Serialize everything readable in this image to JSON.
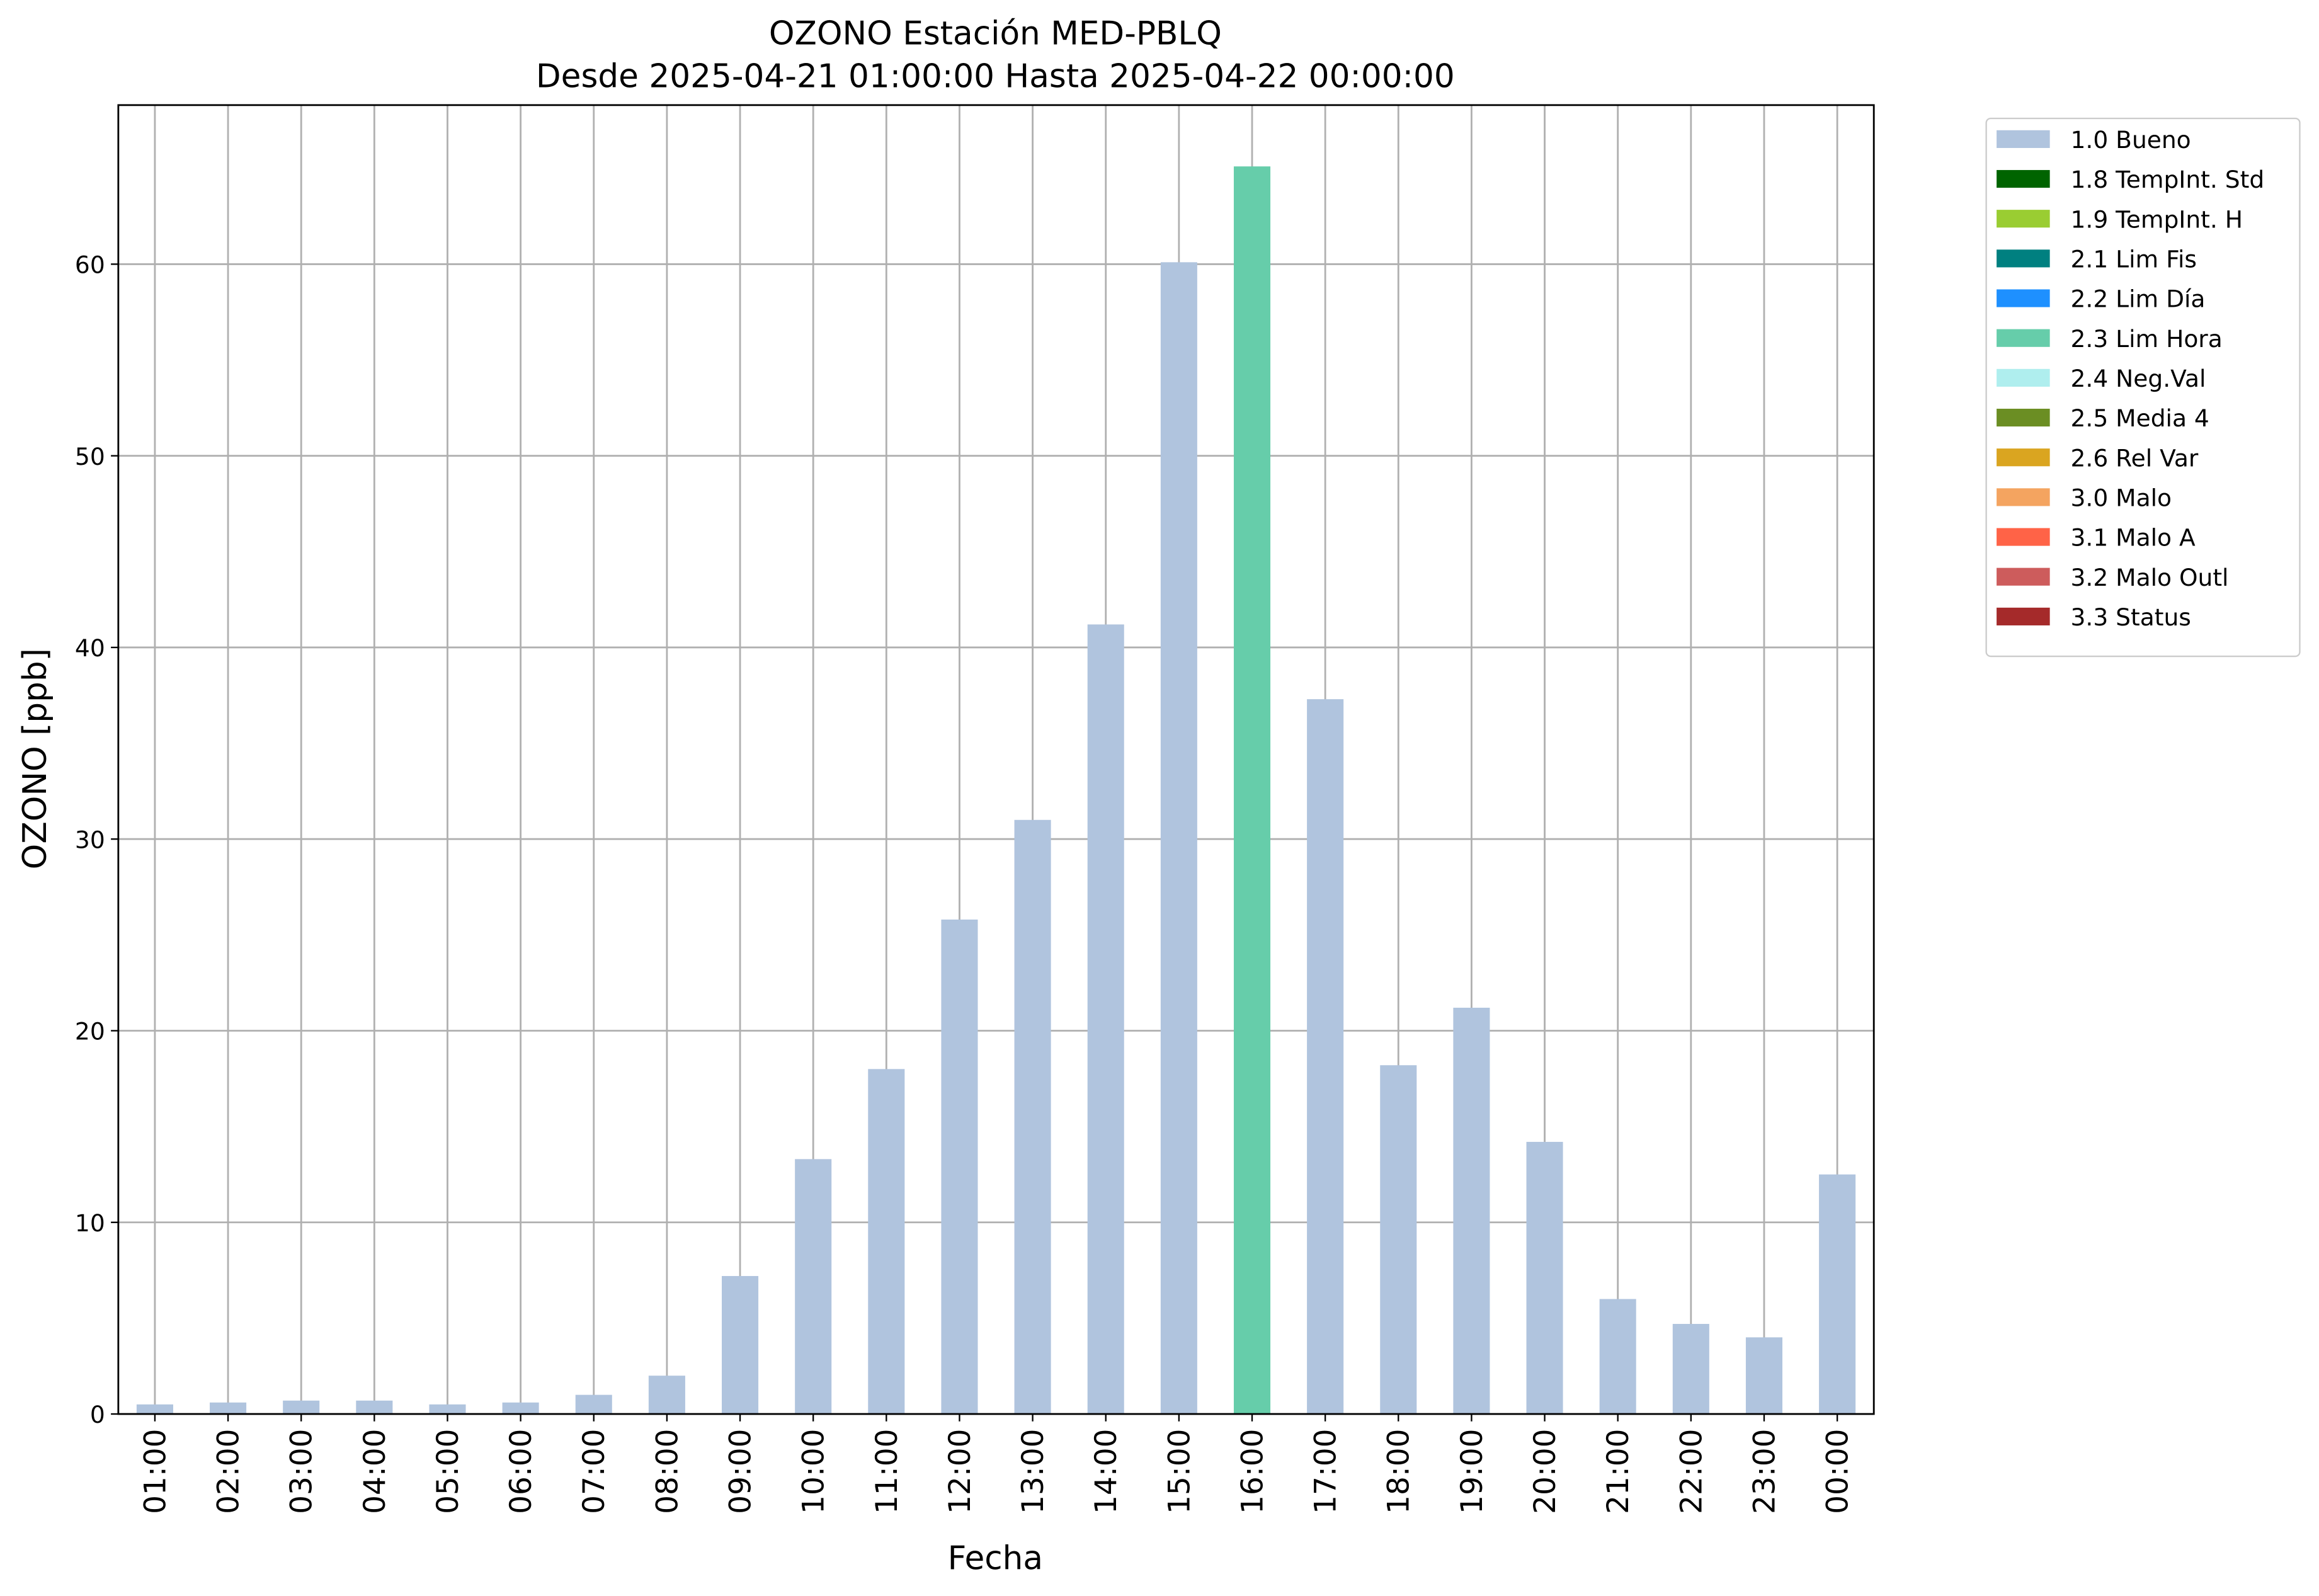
{
  "chart_data": {
    "type": "bar",
    "stacked": true,
    "title": "OZONO Estación MED-PBLQ",
    "subtitle": "Desde 2025-04-21 01:00:00 Hasta 2025-04-22 00:00:00",
    "xlabel": "Fecha",
    "ylabel": "OZONO [ppb]",
    "categories": [
      "01:00",
      "02:00",
      "03:00",
      "04:00",
      "05:00",
      "06:00",
      "07:00",
      "08:00",
      "09:00",
      "10:00",
      "11:00",
      "12:00",
      "13:00",
      "14:00",
      "15:00",
      "16:00",
      "17:00",
      "18:00",
      "19:00",
      "20:00",
      "21:00",
      "22:00",
      "23:00",
      "00:00"
    ],
    "series": [
      {
        "name": "1.0 Bueno",
        "color": "#b0c4de",
        "values": [
          0.5,
          0.6,
          0.7,
          0.7,
          0.5,
          0.6,
          1.0,
          2.0,
          7.2,
          13.3,
          18.0,
          25.8,
          31.0,
          41.2,
          60.1,
          null,
          37.3,
          18.2,
          21.2,
          14.2,
          6.0,
          4.7,
          4.0,
          12.5
        ]
      },
      {
        "name": "1.8 TempInt. Std",
        "color": "#006400",
        "values": [
          null,
          null,
          null,
          null,
          null,
          null,
          null,
          null,
          null,
          null,
          null,
          null,
          null,
          null,
          null,
          null,
          null,
          null,
          null,
          null,
          null,
          null,
          null,
          null
        ]
      },
      {
        "name": "1.9 TempInt. H",
        "color": "#9acd32",
        "values": [
          null,
          null,
          null,
          null,
          null,
          null,
          null,
          null,
          null,
          null,
          null,
          null,
          null,
          null,
          null,
          null,
          null,
          null,
          null,
          null,
          null,
          null,
          null,
          null
        ]
      },
      {
        "name": "2.1 Lim Fis",
        "color": "#008080",
        "values": [
          null,
          null,
          null,
          null,
          null,
          null,
          null,
          null,
          null,
          null,
          null,
          null,
          null,
          null,
          null,
          null,
          null,
          null,
          null,
          null,
          null,
          null,
          null,
          null
        ]
      },
      {
        "name": "2.2 Lim Día",
        "color": "#1e90ff",
        "values": [
          null,
          null,
          null,
          null,
          null,
          null,
          null,
          null,
          null,
          null,
          null,
          null,
          null,
          null,
          null,
          null,
          null,
          null,
          null,
          null,
          null,
          null,
          null,
          null
        ]
      },
      {
        "name": "2.3 Lim Hora",
        "color": "#66cdaa",
        "values": [
          null,
          null,
          null,
          null,
          null,
          null,
          null,
          null,
          null,
          null,
          null,
          null,
          null,
          null,
          null,
          65.1,
          null,
          null,
          null,
          null,
          null,
          null,
          null,
          null
        ]
      },
      {
        "name": "2.4 Neg.Val",
        "color": "#afeeee",
        "values": [
          null,
          null,
          null,
          null,
          null,
          null,
          null,
          null,
          null,
          null,
          null,
          null,
          null,
          null,
          null,
          null,
          null,
          null,
          null,
          null,
          null,
          null,
          null,
          null
        ]
      },
      {
        "name": "2.5 Media 4",
        "color": "#6b8e23",
        "values": [
          null,
          null,
          null,
          null,
          null,
          null,
          null,
          null,
          null,
          null,
          null,
          null,
          null,
          null,
          null,
          null,
          null,
          null,
          null,
          null,
          null,
          null,
          null,
          null
        ]
      },
      {
        "name": "2.6 Rel Var",
        "color": "#daa520",
        "values": [
          null,
          null,
          null,
          null,
          null,
          null,
          null,
          null,
          null,
          null,
          null,
          null,
          null,
          null,
          null,
          null,
          null,
          null,
          null,
          null,
          null,
          null,
          null,
          null
        ]
      },
      {
        "name": "3.0 Malo",
        "color": "#f4a460",
        "values": [
          null,
          null,
          null,
          null,
          null,
          null,
          null,
          null,
          null,
          null,
          null,
          null,
          null,
          null,
          null,
          null,
          null,
          null,
          null,
          null,
          null,
          null,
          null,
          null
        ]
      },
      {
        "name": "3.1 Malo A",
        "color": "#ff6347",
        "values": [
          null,
          null,
          null,
          null,
          null,
          null,
          null,
          null,
          null,
          null,
          null,
          null,
          null,
          null,
          null,
          null,
          null,
          null,
          null,
          null,
          null,
          null,
          null,
          null
        ]
      },
      {
        "name": "3.2 Malo Outl",
        "color": "#cd5c5c",
        "values": [
          null,
          null,
          null,
          null,
          null,
          null,
          null,
          null,
          null,
          null,
          null,
          null,
          null,
          null,
          null,
          null,
          null,
          null,
          null,
          null,
          null,
          null,
          null,
          null
        ]
      },
      {
        "name": "3.3 Status",
        "color": "#a52a2a",
        "values": [
          null,
          null,
          null,
          null,
          null,
          null,
          null,
          null,
          null,
          null,
          null,
          null,
          null,
          null,
          null,
          null,
          null,
          null,
          null,
          null,
          null,
          null,
          null,
          null
        ]
      }
    ],
    "ylim": [
      0,
      68.3
    ],
    "yticks": [
      0,
      10,
      20,
      30,
      40,
      50,
      60
    ],
    "grid": true,
    "legend": "outside upper right"
  }
}
